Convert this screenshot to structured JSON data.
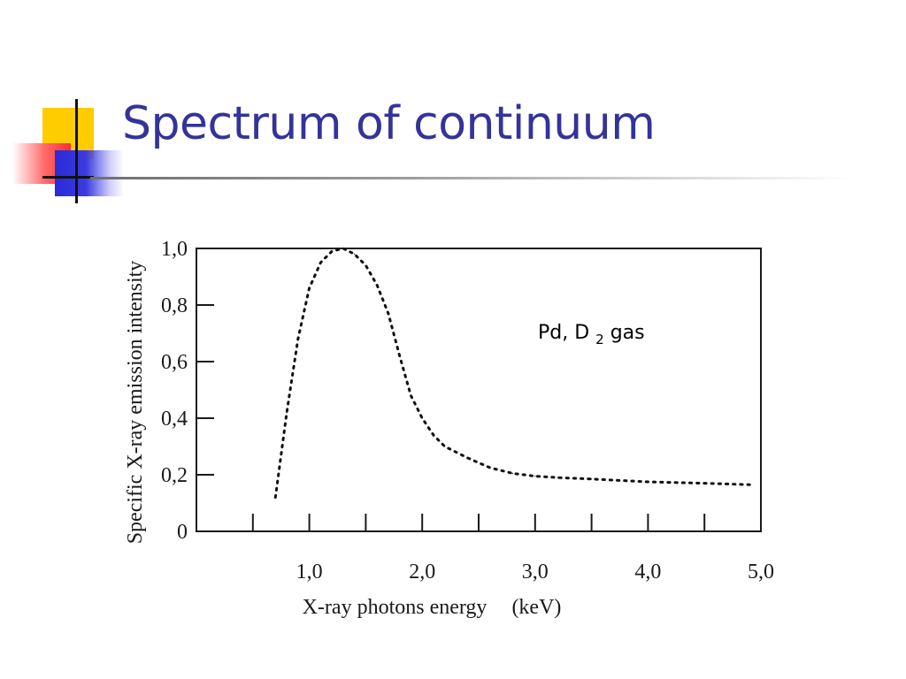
{
  "slide": {
    "title": "Spectrum of continuum"
  },
  "chart_data": {
    "type": "scatter",
    "title": "",
    "xlabel": "X-ray photons energy",
    "xunit": "(keV)",
    "ylabel": "Specific X-ray emission intensity",
    "xlim": [
      0,
      5.0
    ],
    "ylim": [
      0,
      1.0
    ],
    "x_ticks": [
      0.5,
      1.0,
      1.5,
      2.0,
      2.5,
      3.0,
      3.5,
      4.0,
      4.5
    ],
    "x_tick_labels": [
      {
        "value": 1.0,
        "label": "1,0"
      },
      {
        "value": 2.0,
        "label": "2,0"
      },
      {
        "value": 3.0,
        "label": "3,0"
      },
      {
        "value": 4.0,
        "label": "4,0"
      },
      {
        "value": 5.0,
        "label": "5,0"
      }
    ],
    "y_ticks": [
      {
        "value": 0,
        "label": "0"
      },
      {
        "value": 0.2,
        "label": "0,2"
      },
      {
        "value": 0.4,
        "label": "0,4"
      },
      {
        "value": 0.6,
        "label": "0,6"
      },
      {
        "value": 0.8,
        "label": "0,8"
      },
      {
        "value": 1.0,
        "label": "1,0"
      }
    ],
    "annotation": {
      "main": "Pd, D",
      "sub": "2",
      "tail": " gas"
    },
    "grid": false,
    "line_style": "dotted",
    "series": [
      {
        "x": [
          0.7,
          0.8,
          0.9,
          1.0,
          1.1,
          1.2,
          1.3,
          1.4,
          1.5,
          1.6,
          1.7,
          1.8,
          1.9,
          2.0,
          2.1,
          2.2,
          2.4,
          2.6,
          2.8,
          3.0,
          3.2,
          3.5,
          4.0,
          4.5,
          4.9
        ],
        "y": [
          0.12,
          0.42,
          0.68,
          0.86,
          0.95,
          0.99,
          1.0,
          0.98,
          0.94,
          0.87,
          0.77,
          0.62,
          0.48,
          0.4,
          0.34,
          0.3,
          0.26,
          0.225,
          0.205,
          0.195,
          0.19,
          0.185,
          0.175,
          0.17,
          0.165
        ]
      }
    ]
  }
}
